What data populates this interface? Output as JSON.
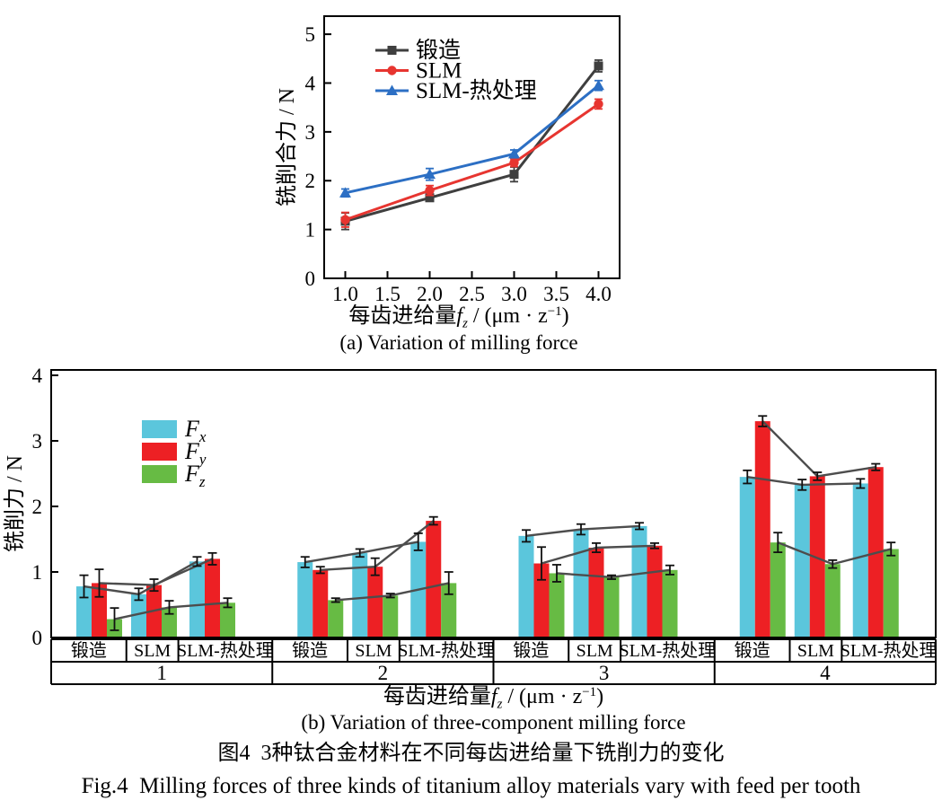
{
  "figure": {
    "caption_zh": "图4  3种钛合金材料在不同每齿进给量下铣削力的变化",
    "caption_en": "Fig.4  Milling forces of three kinds of titanium alloy materials vary with feed per tooth"
  },
  "chart_data": [
    {
      "id": "a",
      "type": "line",
      "sub_caption": "(a) Variation of milling force",
      "ylabel": "铣削合力 / N",
      "xlabel_parts": {
        "prefix": "每齿进给量",
        "var": "f",
        "var_sub": "z",
        "mid": " / (μm · z",
        "sup": "−1",
        "end": ")"
      },
      "x": [
        1.0,
        2.0,
        3.0,
        4.0
      ],
      "xtick_labels": [
        "1.0",
        "1.5",
        "2.0",
        "2.5",
        "3.0",
        "3.5",
        "4.0"
      ],
      "xtick_values": [
        1,
        1.5,
        2,
        2.5,
        3,
        3.5,
        4
      ],
      "xlim": [
        0.75,
        4.25
      ],
      "ylim": [
        0,
        5.37
      ],
      "yticks": [
        0,
        1,
        2,
        3,
        4,
        5
      ],
      "grid": false,
      "legend_position": "upper-left-inside",
      "series": [
        {
          "name": "锻造",
          "slug": "forged",
          "marker": "square",
          "color": "#3f3f3f",
          "values": [
            1.17,
            1.65,
            2.13,
            4.35
          ],
          "errors": [
            0.17,
            0.05,
            0.15,
            0.12
          ]
        },
        {
          "name": "SLM",
          "slug": "slm",
          "marker": "circle",
          "color": "#e73530",
          "values": [
            1.2,
            1.8,
            2.37,
            3.57
          ],
          "errors": [
            0.15,
            0.1,
            0.08,
            0.1
          ]
        },
        {
          "name": "SLM-热处理",
          "slug": "slm-heat-treated",
          "marker": "triangle",
          "color": "#2c6fc4",
          "values": [
            1.75,
            2.13,
            2.55,
            3.95
          ],
          "errors": [
            0.08,
            0.12,
            0.08,
            0.1
          ]
        }
      ]
    },
    {
      "id": "b",
      "type": "bar",
      "sub_caption": "(b) Variation of three-component milling force",
      "ylabel": "铣削力 / N",
      "xlabel_parts": {
        "prefix": "每齿进给量",
        "var": "f",
        "var_sub": "z",
        "mid": " / (μm · z",
        "sup": "−1",
        "end": ")"
      },
      "ylim": [
        0,
        4.08
      ],
      "yticks": [
        0,
        1,
        2,
        3,
        4
      ],
      "grid": false,
      "legend_position": "upper-left-inside",
      "group_labels": [
        "1",
        "2",
        "3",
        "4"
      ],
      "material_labels": [
        "锻造",
        "SLM",
        "SLM-热处理"
      ],
      "material_slugs": [
        "forged",
        "slm",
        "slm-heat-treated"
      ],
      "components": [
        {
          "label_main": "F",
          "label_sub": "x",
          "slug": "fx",
          "color": "#5bc6dc"
        },
        {
          "label_main": "F",
          "label_sub": "y",
          "slug": "fy",
          "color": "#ed2024"
        },
        {
          "label_main": "F",
          "label_sub": "z",
          "slug": "fz",
          "color": "#67bb44"
        }
      ],
      "connector_color": "#4d4d4d",
      "error_bar_color": "#111111",
      "values": [
        [
          [
            0.78,
            0.83,
            0.28
          ],
          [
            0.66,
            0.8,
            0.46
          ],
          [
            1.16,
            1.2,
            0.53
          ]
        ],
        [
          [
            1.15,
            1.03,
            0.57
          ],
          [
            1.29,
            1.08,
            0.64
          ],
          [
            1.46,
            1.78,
            0.83
          ]
        ],
        [
          [
            1.55,
            1.13,
            0.98
          ],
          [
            1.65,
            1.37,
            0.92
          ],
          [
            1.7,
            1.4,
            1.03
          ]
        ],
        [
          [
            2.45,
            3.3,
            1.45
          ],
          [
            2.33,
            2.46,
            1.12
          ],
          [
            2.35,
            2.6,
            1.35
          ]
        ]
      ],
      "errors": [
        [
          [
            0.17,
            0.21,
            0.17
          ],
          [
            0.09,
            0.09,
            0.1
          ],
          [
            0.07,
            0.09,
            0.07
          ]
        ],
        [
          [
            0.08,
            0.05,
            0.03
          ],
          [
            0.06,
            0.13,
            0.03
          ],
          [
            0.13,
            0.06,
            0.17
          ]
        ],
        [
          [
            0.09,
            0.25,
            0.13
          ],
          [
            0.08,
            0.07,
            0.03
          ],
          [
            0.05,
            0.04,
            0.07
          ]
        ],
        [
          [
            0.1,
            0.08,
            0.15
          ],
          [
            0.08,
            0.06,
            0.06
          ],
          [
            0.07,
            0.05,
            0.1
          ]
        ]
      ]
    }
  ]
}
